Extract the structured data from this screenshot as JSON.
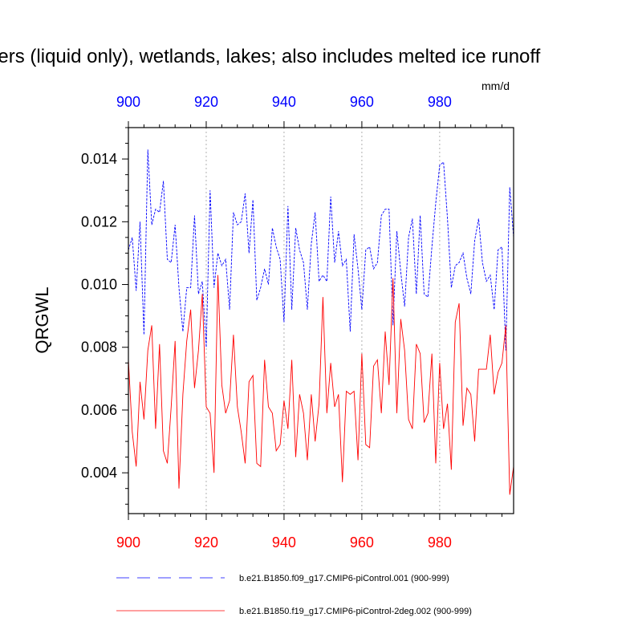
{
  "chart_data": {
    "type": "line",
    "title": "aciers (liquid only), wetlands, lakes; also includes melted ice runoff",
    "units": "mm/d",
    "ylabel": "QRGWL",
    "xlim": [
      900,
      999
    ],
    "ylim": [
      0.0027,
      0.015
    ],
    "y_ticks": [
      "0.004",
      "0.006",
      "0.008",
      "0.010",
      "0.012",
      "0.014"
    ],
    "x_ticks_bottom": [
      "900",
      "920",
      "940",
      "960",
      "980"
    ],
    "x_ticks_top": [
      "900",
      "920",
      "940",
      "960",
      "980"
    ],
    "x_tick_color_bottom": "#ff0000",
    "x_tick_color_top": "#0000ff",
    "grid": "vertical dotted",
    "series": [
      {
        "name": "b.e21.B1850.f09_g17.CMIP6-piControl.001 (900-999)",
        "color": "#0000ff",
        "dash": "dashed",
        "x": [
          900,
          901,
          902,
          903,
          904,
          905,
          906,
          907,
          908,
          909,
          910,
          911,
          912,
          913,
          914,
          915,
          916,
          917,
          918,
          919,
          920,
          921,
          922,
          923,
          924,
          925,
          926,
          927,
          928,
          929,
          930,
          931,
          932,
          933,
          934,
          935,
          936,
          937,
          938,
          939,
          940,
          941,
          942,
          943,
          944,
          945,
          946,
          947,
          948,
          949,
          950,
          951,
          952,
          953,
          954,
          955,
          956,
          957,
          958,
          959,
          960,
          961,
          962,
          963,
          964,
          965,
          966,
          967,
          968,
          969,
          970,
          971,
          972,
          973,
          974,
          975,
          976,
          977,
          978,
          979,
          980,
          981,
          982,
          983,
          984,
          985,
          986,
          987,
          988,
          989,
          990,
          991,
          992,
          993,
          994,
          995,
          996,
          997,
          998,
          999
        ],
        "values": [
          0.0111,
          0.0115,
          0.0098,
          0.012,
          0.0084,
          0.0143,
          0.0119,
          0.0124,
          0.0123,
          0.0133,
          0.0108,
          0.0107,
          0.0119,
          0.0099,
          0.0085,
          0.0099,
          0.0099,
          0.0122,
          0.0097,
          0.0101,
          0.008,
          0.013,
          0.0099,
          0.011,
          0.0106,
          0.0108,
          0.0092,
          0.0123,
          0.0119,
          0.012,
          0.0129,
          0.011,
          0.0127,
          0.0095,
          0.0099,
          0.0105,
          0.01,
          0.0118,
          0.0112,
          0.0108,
          0.0088,
          0.0125,
          0.0092,
          0.0118,
          0.0111,
          0.0107,
          0.0092,
          0.0113,
          0.0123,
          0.0101,
          0.0103,
          0.0101,
          0.0128,
          0.0107,
          0.0117,
          0.0106,
          0.0108,
          0.0085,
          0.0116,
          0.0105,
          0.0092,
          0.0111,
          0.0112,
          0.0105,
          0.0107,
          0.0122,
          0.0124,
          0.0124,
          0.0087,
          0.0117,
          0.0104,
          0.0093,
          0.0115,
          0.0121,
          0.0097,
          0.0122,
          0.0097,
          0.0096,
          0.0112,
          0.0126,
          0.0138,
          0.0139,
          0.0121,
          0.0099,
          0.0106,
          0.0107,
          0.011,
          0.0102,
          0.0097,
          0.0114,
          0.0121,
          0.0107,
          0.0101,
          0.0103,
          0.0092,
          0.0111,
          0.0112,
          0.0079,
          0.0131,
          0.0115
        ]
      },
      {
        "name": "b.e21.B1850.f19_g17.CMIP6-piControl-2deg.002 (900-999)",
        "color": "#ff0000",
        "dash": "solid",
        "x": [
          900,
          901,
          902,
          903,
          904,
          905,
          906,
          907,
          908,
          909,
          910,
          911,
          912,
          913,
          914,
          915,
          916,
          917,
          918,
          919,
          920,
          921,
          922,
          923,
          924,
          925,
          926,
          927,
          928,
          929,
          930,
          931,
          932,
          933,
          934,
          935,
          936,
          937,
          938,
          939,
          940,
          941,
          942,
          943,
          944,
          945,
          946,
          947,
          948,
          949,
          950,
          951,
          952,
          953,
          954,
          955,
          956,
          957,
          958,
          959,
          960,
          961,
          962,
          963,
          964,
          965,
          966,
          967,
          968,
          969,
          970,
          971,
          972,
          973,
          974,
          975,
          976,
          977,
          978,
          979,
          980,
          981,
          982,
          983,
          984,
          985,
          986,
          987,
          988,
          989,
          990,
          991,
          992,
          993,
          994,
          995,
          996,
          997,
          998,
          999
        ],
        "values": [
          0.0076,
          0.0053,
          0.0042,
          0.0069,
          0.0057,
          0.0079,
          0.0087,
          0.0054,
          0.0081,
          0.0047,
          0.0043,
          0.0061,
          0.0082,
          0.0035,
          0.0065,
          0.0082,
          0.0092,
          0.0067,
          0.0079,
          0.0097,
          0.0061,
          0.0059,
          0.004,
          0.0103,
          0.0068,
          0.0059,
          0.0063,
          0.0084,
          0.0061,
          0.0053,
          0.0043,
          0.0069,
          0.0071,
          0.0043,
          0.0042,
          0.0076,
          0.0061,
          0.0059,
          0.0047,
          0.0049,
          0.0063,
          0.0054,
          0.0076,
          0.0045,
          0.0065,
          0.0059,
          0.0044,
          0.0065,
          0.005,
          0.0062,
          0.0096,
          0.0059,
          0.0075,
          0.0061,
          0.0065,
          0.0037,
          0.0066,
          0.0065,
          0.0066,
          0.0044,
          0.0078,
          0.0049,
          0.0048,
          0.0074,
          0.0076,
          0.0059,
          0.0085,
          0.0068,
          0.0102,
          0.0059,
          0.0089,
          0.0079,
          0.0057,
          0.0054,
          0.0081,
          0.0078,
          0.0056,
          0.0059,
          0.0078,
          0.0043,
          0.0075,
          0.0054,
          0.0062,
          0.0041,
          0.0088,
          0.0094,
          0.0055,
          0.0067,
          0.0065,
          0.005,
          0.0073,
          0.0073,
          0.0073,
          0.0084,
          0.0065,
          0.0072,
          0.0075,
          0.0087,
          0.0033,
          0.0042
        ]
      }
    ],
    "legend": {
      "placement": "bottom"
    }
  }
}
